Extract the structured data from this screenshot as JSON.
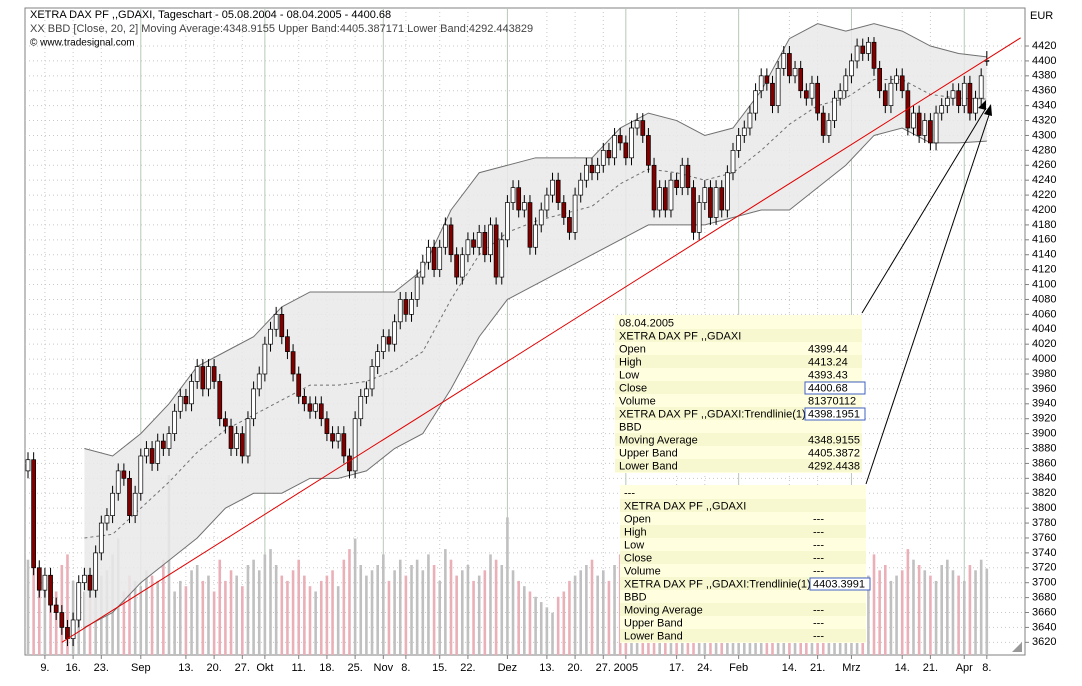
{
  "chart_data": {
    "type": "candlestick",
    "title": "XETRA DAX PF ,,GDAXI, Tageschart - 05.08.2004 - 08.04.2005 - 4400.68",
    "subtitle": "XX BBD [Close, 20, 2] Moving Average:4348.9155 Upper Band:4405.387171 Lower Band:4292.443829",
    "source": "© www.tradesignal.com",
    "y_axis_label": "EUR",
    "xlim": [
      -0.53,
      176.77
    ],
    "ylim": [
      3603,
      4471
    ],
    "yticks": [
      3620,
      3640,
      3660,
      3680,
      3700,
      3720,
      3740,
      3760,
      3780,
      3800,
      3820,
      3840,
      3860,
      3880,
      3900,
      3920,
      3940,
      3960,
      3980,
      4000,
      4020,
      4040,
      4060,
      4080,
      4100,
      4120,
      4140,
      4160,
      4180,
      4200,
      4220,
      4240,
      4260,
      4280,
      4300,
      4320,
      4340,
      4360,
      4380,
      4400,
      4420
    ],
    "xticks": [
      {
        "value": 3,
        "label": "9."
      },
      {
        "value": 8,
        "label": "16."
      },
      {
        "value": 13,
        "label": "23."
      },
      {
        "value": 20,
        "label": "Sep"
      },
      {
        "value": 28,
        "label": "13."
      },
      {
        "value": 33,
        "label": "20."
      },
      {
        "value": 38,
        "label": "27."
      },
      {
        "value": 42,
        "label": "Okt"
      },
      {
        "value": 48,
        "label": "11."
      },
      {
        "value": 53,
        "label": "18."
      },
      {
        "value": 58,
        "label": "25."
      },
      {
        "value": 63,
        "label": "Nov"
      },
      {
        "value": 67,
        "label": "8."
      },
      {
        "value": 73,
        "label": "15."
      },
      {
        "value": 78,
        "label": "22."
      },
      {
        "value": 85,
        "label": "Dez"
      },
      {
        "value": 92,
        "label": "13."
      },
      {
        "value": 97,
        "label": "20."
      },
      {
        "value": 102,
        "label": "27."
      },
      {
        "value": 106,
        "label": "2005"
      },
      {
        "value": 115,
        "label": "17."
      },
      {
        "value": 120,
        "label": "24."
      },
      {
        "value": 126,
        "label": "Feb"
      },
      {
        "value": 135,
        "label": "14."
      },
      {
        "value": 140,
        "label": "21."
      },
      {
        "value": 146,
        "label": "Mrz"
      },
      {
        "value": 155,
        "label": "14."
      },
      {
        "value": 160,
        "label": "21."
      },
      {
        "value": 166,
        "label": "Apr"
      },
      {
        "value": 170,
        "label": "8."
      }
    ],
    "grid": true,
    "up_color": "#ffffff",
    "down_color": "#800000",
    "open": [
      3850,
      3865,
      3720,
      3690,
      3710,
      3670,
      3660,
      3640,
      3625,
      3650,
      3700,
      3710,
      3690,
      3740,
      3780,
      3790,
      3820,
      3850,
      3840,
      3790,
      3820,
      3870,
      3880,
      3860,
      3890,
      3880,
      3900,
      3930,
      3950,
      3940,
      3970,
      3990,
      3960,
      3990,
      3970,
      3920,
      3910,
      3880,
      3900,
      3870,
      3920,
      3960,
      3980,
      4020,
      4040,
      4060,
      4030,
      4010,
      3980,
      3950,
      3940,
      3930,
      3940,
      3920,
      3900,
      3890,
      3900,
      3870,
      3850,
      3920,
      3950,
      3960,
      3990,
      4010,
      4030,
      4020,
      4050,
      4080,
      4060,
      4080,
      4110,
      4130,
      4150,
      4120,
      4150,
      4180,
      4140,
      4110,
      4140,
      4160,
      4150,
      4170,
      4140,
      4180,
      4110,
      4160,
      4210,
      4230,
      4200,
      4210,
      4150,
      4180,
      4200,
      4220,
      4240,
      4210,
      4190,
      4170,
      4220,
      4240,
      4260,
      4250,
      4260,
      4280,
      4270,
      4300,
      4290,
      4270,
      4310,
      4320,
      4300,
      4260,
      4200,
      4230,
      4200,
      4240,
      4230,
      4260,
      4230,
      4170,
      4210,
      4230,
      4190,
      4230,
      4200,
      4250,
      4280,
      4300,
      4310,
      4330,
      4360,
      4380,
      4370,
      4340,
      4390,
      4410,
      4380,
      4390,
      4360,
      4350,
      4370,
      4330,
      4300,
      4320,
      4350,
      4360,
      4380,
      4400,
      4420,
      4410,
      4425,
      4390,
      4360,
      4340,
      4370,
      4380,
      4360,
      4310,
      4330,
      4300,
      4320,
      4290,
      4330,
      4340,
      4350,
      4360,
      4340,
      4370,
      4330,
      4350,
      4399.44
    ],
    "high": [
      3875,
      3875,
      3730,
      3720,
      3720,
      3680,
      3670,
      3650,
      3660,
      3710,
      3720,
      3720,
      3750,
      3790,
      3800,
      3830,
      3860,
      3860,
      3850,
      3830,
      3880,
      3890,
      3890,
      3900,
      3900,
      3910,
      3940,
      3960,
      3960,
      3980,
      4000,
      4000,
      4000,
      4000,
      3980,
      3930,
      3920,
      3910,
      3910,
      3930,
      3970,
      3990,
      4030,
      4050,
      4070,
      4070,
      4040,
      4020,
      3990,
      3960,
      3950,
      3950,
      3950,
      3930,
      3910,
      3910,
      3910,
      3880,
      3930,
      3960,
      3970,
      4000,
      4020,
      4040,
      4040,
      4060,
      4090,
      4090,
      4090,
      4120,
      4140,
      4160,
      4160,
      4160,
      4190,
      4190,
      4150,
      4150,
      4170,
      4170,
      4180,
      4180,
      4190,
      4190,
      4170,
      4220,
      4240,
      4240,
      4220,
      4220,
      4190,
      4210,
      4230,
      4250,
      4250,
      4220,
      4200,
      4230,
      4250,
      4270,
      4270,
      4270,
      4290,
      4290,
      4310,
      4310,
      4300,
      4320,
      4330,
      4330,
      4310,
      4270,
      4240,
      4240,
      4250,
      4250,
      4270,
      4270,
      4240,
      4220,
      4240,
      4240,
      4240,
      4240,
      4260,
      4290,
      4310,
      4320,
      4340,
      4370,
      4390,
      4390,
      4380,
      4400,
      4420,
      4420,
      4400,
      4400,
      4370,
      4380,
      4380,
      4340,
      4330,
      4360,
      4370,
      4390,
      4410,
      4430,
      4430,
      4432,
      4432,
      4400,
      4370,
      4380,
      4390,
      4390,
      4370,
      4340,
      4340,
      4330,
      4330,
      4340,
      4350,
      4360,
      4370,
      4370,
      4380,
      4380,
      4360,
      4390,
      4413.24
    ],
    "low": [
      3840,
      3710,
      3680,
      3680,
      3660,
      3650,
      3630,
      3615,
      3615,
      3640,
      3690,
      3680,
      3680,
      3730,
      3770,
      3780,
      3810,
      3830,
      3780,
      3780,
      3810,
      3860,
      3850,
      3850,
      3870,
      3870,
      3890,
      3920,
      3930,
      3930,
      3960,
      3950,
      3950,
      3960,
      3910,
      3900,
      3870,
      3870,
      3860,
      3860,
      3910,
      3950,
      3970,
      4010,
      4030,
      4020,
      4000,
      3970,
      3940,
      3930,
      3920,
      3920,
      3910,
      3890,
      3880,
      3880,
      3860,
      3840,
      3840,
      3910,
      3940,
      3950,
      3980,
      4000,
      4010,
      4010,
      4040,
      4050,
      4050,
      4070,
      4100,
      4120,
      4110,
      4110,
      4140,
      4130,
      4100,
      4100,
      4130,
      4140,
      4140,
      4130,
      4130,
      4100,
      4100,
      4150,
      4200,
      4190,
      4190,
      4140,
      4140,
      4170,
      4190,
      4210,
      4200,
      4180,
      4160,
      4160,
      4210,
      4230,
      4240,
      4240,
      4250,
      4260,
      4260,
      4280,
      4260,
      4260,
      4300,
      4290,
      4250,
      4190,
      4190,
      4190,
      4190,
      4220,
      4220,
      4220,
      4160,
      4160,
      4200,
      4180,
      4180,
      4190,
      4190,
      4240,
      4270,
      4290,
      4300,
      4320,
      4350,
      4360,
      4330,
      4330,
      4380,
      4370,
      4370,
      4350,
      4340,
      4340,
      4320,
      4290,
      4290,
      4310,
      4340,
      4350,
      4370,
      4390,
      4400,
      4400,
      4380,
      4350,
      4330,
      4330,
      4360,
      4350,
      4300,
      4300,
      4290,
      4290,
      4280,
      4280,
      4320,
      4330,
      4340,
      4330,
      4330,
      4320,
      4320,
      4340,
      4393.43
    ],
    "close": [
      3865,
      3720,
      3690,
      3710,
      3670,
      3660,
      3640,
      3625,
      3650,
      3700,
      3710,
      3690,
      3740,
      3780,
      3790,
      3820,
      3850,
      3840,
      3790,
      3820,
      3870,
      3880,
      3860,
      3890,
      3880,
      3900,
      3930,
      3950,
      3940,
      3970,
      3990,
      3960,
      3990,
      3970,
      3920,
      3910,
      3880,
      3900,
      3870,
      3920,
      3960,
      3980,
      4020,
      4040,
      4060,
      4030,
      4010,
      3980,
      3950,
      3940,
      3930,
      3940,
      3920,
      3900,
      3890,
      3900,
      3870,
      3850,
      3920,
      3950,
      3960,
      3990,
      4010,
      4030,
      4020,
      4050,
      4080,
      4060,
      4080,
      4110,
      4130,
      4150,
      4120,
      4150,
      4180,
      4140,
      4110,
      4140,
      4160,
      4150,
      4170,
      4140,
      4180,
      4110,
      4160,
      4210,
      4230,
      4200,
      4210,
      4150,
      4180,
      4200,
      4220,
      4240,
      4210,
      4190,
      4170,
      4220,
      4240,
      4260,
      4250,
      4260,
      4280,
      4270,
      4300,
      4290,
      4270,
      4310,
      4320,
      4300,
      4260,
      4200,
      4230,
      4200,
      4240,
      4230,
      4260,
      4230,
      4170,
      4210,
      4230,
      4190,
      4230,
      4200,
      4250,
      4280,
      4300,
      4310,
      4330,
      4360,
      4380,
      4370,
      4340,
      4390,
      4410,
      4380,
      4390,
      4360,
      4350,
      4370,
      4330,
      4300,
      4320,
      4350,
      4360,
      4380,
      4400,
      4420,
      4410,
      4425,
      4390,
      4360,
      4340,
      4370,
      4380,
      4360,
      4310,
      4330,
      4300,
      4320,
      4290,
      4330,
      4340,
      4350,
      4360,
      4340,
      4370,
      4330,
      4350,
      4380,
      4400.68
    ],
    "volume": [
      90000000.0,
      120000000.0,
      80000000.0,
      70000000.0,
      75000000.0,
      60000000.0,
      85000000.0,
      95000000.0,
      70000000.0,
      65000000.0,
      60000000.0,
      55000000.0,
      70000000.0,
      75000000.0,
      80000000.0,
      95000000.0,
      110000000.0,
      60000000.0,
      75000000.0,
      70000000.0,
      65000000.0,
      80000000.0,
      75000000.0,
      70000000.0,
      90000000.0,
      170000000.0,
      60000000.0,
      70000000.0,
      65000000.0,
      80000000.0,
      85000000.0,
      70000000.0,
      75000000.0,
      60000000.0,
      90000000.0,
      70000000.0,
      80000000.0,
      75000000.0,
      65000000.0,
      85000000.0,
      90000000.0,
      80000000.0,
      95000000.0,
      100000000.0,
      85000000.0,
      75000000.0,
      70000000.0,
      80000000.0,
      90000000.0,
      75000000.0,
      65000000.0,
      60000000.0,
      70000000.0,
      75000000.0,
      80000000.0,
      65000000.0,
      90000000.0,
      100000000.0,
      110000000.0,
      85000000.0,
      75000000.0,
      80000000.0,
      85000000.0,
      95000000.0,
      70000000.0,
      80000000.0,
      90000000.0,
      75000000.0,
      85000000.0,
      90000000.0,
      80000000.0,
      95000000.0,
      85000000.0,
      70000000.0,
      100000000.0,
      90000000.0,
      75000000.0,
      80000000.0,
      85000000.0,
      70000000.0,
      75000000.0,
      80000000.0,
      95000000.0,
      90000000.0,
      85000000.0,
      130000000.0,
      80000000.0,
      70000000.0,
      65000000.0,
      60000000.0,
      55000000.0,
      50000000.0,
      45000000.0,
      40000000.0,
      55000000.0,
      60000000.0,
      70000000.0,
      75000000.0,
      80000000.0,
      85000000.0,
      90000000.0,
      75000000.0,
      80000000.0,
      70000000.0,
      85000000.0,
      95000000.0,
      100000000.0,
      90000000.0,
      85000000.0,
      80000000.0,
      95000000.0,
      110000000.0,
      85000000.0,
      80000000.0,
      75000000.0,
      70000000.0,
      85000000.0,
      90000000.0,
      105000000.0,
      80000000.0,
      75000000.0,
      70000000.0,
      80000000.0,
      75000000.0,
      85000000.0,
      90000000.0,
      95000000.0,
      80000000.0,
      85000000.0,
      90000000.0,
      100000000.0,
      95000000.0,
      90000000.0,
      85000000.0,
      80000000.0,
      90000000.0,
      85000000.0,
      80000000.0,
      75000000.0,
      70000000.0,
      90000000.0,
      85000000.0,
      80000000.0,
      75000000.0,
      70000000.0,
      65000000.0,
      80000000.0,
      85000000.0,
      90000000.0,
      75000000.0,
      95000000.0,
      80000000.0,
      85000000.0,
      70000000.0,
      75000000.0,
      80000000.0,
      100000000.0,
      90000000.0,
      85000000.0,
      80000000.0,
      75000000.0,
      70000000.0,
      85000000.0,
      90000000.0,
      80000000.0,
      75000000.0,
      70000000.0,
      85000000.0,
      80000000.0,
      90000000.0,
      81370112
    ],
    "volume_up_color": "#c0c0c0",
    "volume_down_color": "#eab0b8",
    "bands": {
      "x": [
        10,
        15,
        20,
        25,
        30,
        35,
        40,
        45,
        50,
        55,
        60,
        65,
        70,
        75,
        80,
        85,
        90,
        95,
        100,
        105,
        110,
        115,
        120,
        125,
        130,
        135,
        140,
        145,
        150,
        155,
        160,
        165,
        170
      ],
      "upper": [
        3880,
        3870,
        3900,
        3940,
        3990,
        4010,
        4030,
        4070,
        4090,
        4090,
        4090,
        4090,
        4120,
        4200,
        4250,
        4260,
        4270,
        4270,
        4270,
        4310,
        4330,
        4320,
        4300,
        4310,
        4360,
        4430,
        4450,
        4440,
        4450,
        4440,
        4420,
        4410,
        4405.3872
      ],
      "mid": [
        3760,
        3765,
        3800,
        3835,
        3875,
        3905,
        3925,
        3945,
        3965,
        3965,
        3970,
        3985,
        4010,
        4080,
        4140,
        4170,
        4185,
        4195,
        4205,
        4235,
        4255,
        4250,
        4240,
        4250,
        4280,
        4315,
        4340,
        4350,
        4375,
        4375,
        4355,
        4350,
        4348.9155
      ],
      "lower": [
        3640,
        3660,
        3700,
        3730,
        3760,
        3800,
        3820,
        3820,
        3840,
        3840,
        3850,
        3880,
        3900,
        3960,
        4030,
        4080,
        4100,
        4120,
        4140,
        4160,
        4180,
        4180,
        4180,
        4190,
        4200,
        4200,
        4230,
        4260,
        4300,
        4310,
        4290,
        4290,
        4292.4438
      ],
      "fill": "#e9e9e9",
      "color": "#707070"
    },
    "trendline": {
      "x": [
        6,
        176
      ],
      "y": [
        3620,
        4431
      ],
      "color": "#e00000"
    }
  },
  "info_panels": [
    {
      "date": "08.04.2005",
      "instrument": "XETRA DAX PF ,,GDAXI",
      "labels": [
        "Open",
        "High",
        "Low",
        "Close",
        "Volume",
        "Moving Average",
        "Upper Band",
        "Lower Band"
      ],
      "trend_label": "XETRA DAX PF ,,GDAXI:Trendlinie(1)",
      "trend_value": "4398.1951",
      "indicator": "BBD"
    },
    {
      "date": "---",
      "instrument": "XETRA DAX PF ,,GDAXI",
      "labels": [
        "Open",
        "High",
        "Low",
        "Close",
        "Volume",
        "Moving Average",
        "Upper Band",
        "Lower Band"
      ],
      "values": [
        "---",
        "---",
        "---",
        "---",
        "---",
        "---",
        "---",
        "---"
      ],
      "trend_label": "XETRA DAX PF ,,GDAXI:Trendlinie(1)",
      "trend_value": "4403.3991",
      "indicator": "BBD"
    }
  ]
}
